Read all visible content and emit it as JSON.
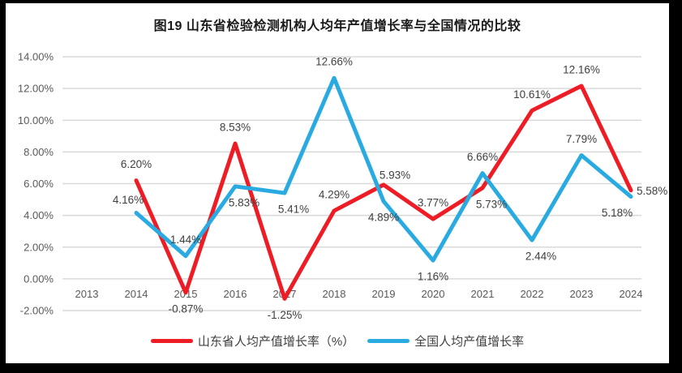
{
  "title": "图19  山东省检验检测机构人均年产值增长率与全国情况的比较",
  "legend": [
    {
      "label": "山东省人均产值增长率（%）",
      "color": "#ee1c25"
    },
    {
      "label": "全国人均产值增长率",
      "color": "#29abe2"
    }
  ],
  "chart_data": {
    "type": "line",
    "title": "图19  山东省检验检测机构人均年产值增长率与全国情况的比较",
    "categories": [
      "2013",
      "2014",
      "2015",
      "2016",
      "2017",
      "2018",
      "2019",
      "2020",
      "2021",
      "2022",
      "2023",
      "2024"
    ],
    "series": [
      {
        "name": "山东省人均产值增长率（%）",
        "color": "#ee1c25",
        "values": [
          null,
          6.2,
          -0.87,
          8.53,
          -1.25,
          4.29,
          5.93,
          3.77,
          5.73,
          10.61,
          12.16,
          5.58
        ],
        "labels": [
          "",
          "6.20%",
          "-0.87%",
          "8.53%",
          "-1.25%",
          "4.29%",
          "5.93%",
          "3.77%",
          "5.73%",
          "10.61%",
          "12.16%",
          "5.58%"
        ],
        "label_pos": [
          null,
          "above",
          "below",
          "above",
          "below",
          "above",
          "above-right",
          "above",
          "below-right",
          "above",
          "above",
          "right"
        ]
      },
      {
        "name": "全国人均产值增长率",
        "color": "#29abe2",
        "values": [
          null,
          4.16,
          1.44,
          5.83,
          5.41,
          12.66,
          4.89,
          1.16,
          6.66,
          2.44,
          7.79,
          5.18
        ],
        "labels": [
          "",
          "4.16%",
          "1.44%",
          "5.83%",
          "5.41%",
          "12.66%",
          "4.89%",
          "1.16%",
          "6.66%",
          "2.44%",
          "7.79%",
          "5.18%"
        ],
        "label_pos": [
          null,
          "above-left",
          "above",
          "below-right",
          "below-right",
          "above",
          "below",
          "below",
          "above",
          "below-right",
          "above",
          "below-left"
        ]
      }
    ],
    "ylim": [
      -2,
      14
    ],
    "ytick_step": 2,
    "yticks": [
      {
        "v": 14,
        "label": "14.00%"
      },
      {
        "v": 12,
        "label": "12.00%"
      },
      {
        "v": 10,
        "label": "10.00%"
      },
      {
        "v": 8,
        "label": "8.00%"
      },
      {
        "v": 6,
        "label": "6.00%"
      },
      {
        "v": 4,
        "label": "4.00%"
      },
      {
        "v": 2,
        "label": "2.00%"
      },
      {
        "v": 0,
        "label": "0.00%"
      },
      {
        "v": -2,
        "label": "-2.00%"
      }
    ],
    "grid": true,
    "legend_position": "bottom"
  },
  "colors": {
    "frame": "#000000",
    "panel": "#ffffff",
    "grid": "#d9d9d9",
    "axis_text": "#595959",
    "data_label": "#3f3f3f",
    "title_text": "#1a1a1a"
  }
}
